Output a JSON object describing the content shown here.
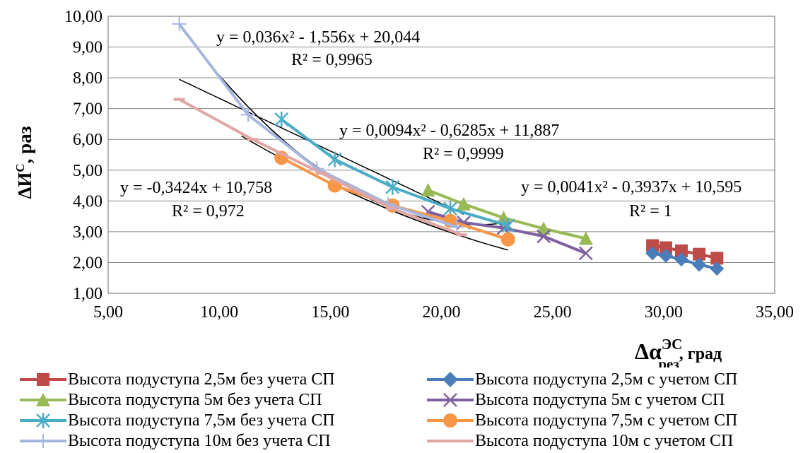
{
  "chart_data": {
    "type": "scatter",
    "ylabel": "ΔИ",
    "ylabel_sup": "С",
    "ylabel_suffix": ", раз",
    "xlabel": "Δα",
    "xlabel_sup": "ЭС",
    "xlabel_sub": "рез",
    "xlabel_suffix": ",  град",
    "xlim": [
      5,
      35
    ],
    "ylim": [
      1,
      10
    ],
    "xticks": [
      5,
      10,
      15,
      20,
      25,
      30,
      35
    ],
    "yticks": [
      1,
      2,
      3,
      4,
      5,
      6,
      7,
      8,
      9,
      10
    ],
    "xtick_labels": [
      "5,00",
      "10,00",
      "15,00",
      "20,00",
      "25,00",
      "30,00",
      "35,00"
    ],
    "ytick_labels": [
      "1,00",
      "2,00",
      "3,00",
      "4,00",
      "5,00",
      "6,00",
      "7,00",
      "8,00",
      "9,00",
      "10,00"
    ],
    "grid": "horizontal",
    "legend_position": "bottom",
    "series": [
      {
        "name": "Высота подуступа 2,5м без учета СП",
        "color": "#be4b48",
        "marker": "square",
        "x": [
          29.5,
          30.1,
          30.8,
          31.6,
          32.4
        ],
        "y": [
          2.55,
          2.48,
          2.38,
          2.27,
          2.14
        ]
      },
      {
        "name": "Высота подуступа 2,5м с учетом СП",
        "color": "#4a7ebb",
        "marker": "diamond",
        "x": [
          29.5,
          30.1,
          30.8,
          31.6,
          32.4
        ],
        "y": [
          2.3,
          2.22,
          2.1,
          1.93,
          1.8
        ]
      },
      {
        "name": "Высота подуступа 5м без учета СП",
        "color": "#98b954",
        "marker": "triangle",
        "x": [
          19.4,
          21.0,
          22.8,
          24.6,
          26.5
        ],
        "y": [
          4.35,
          3.9,
          3.45,
          3.1,
          2.78
        ]
      },
      {
        "name": "Высота подуступа 5м с учетом СП",
        "color": "#7d60a0",
        "marker": "x",
        "x": [
          19.4,
          21.0,
          22.8,
          24.6,
          26.5
        ],
        "y": [
          3.65,
          3.3,
          3.12,
          2.85,
          2.3
        ]
      },
      {
        "name": "Высота подуступа 7,5м без учета СП",
        "color": "#4bacc6",
        "marker": "star",
        "x": [
          12.8,
          15.2,
          17.8,
          20.4,
          23.0
        ],
        "y": [
          6.65,
          5.35,
          4.45,
          3.75,
          3.2
        ]
      },
      {
        "name": "Высота подуступа 7,5м с учетом СП",
        "color": "#f79646",
        "marker": "circle",
        "x": [
          12.8,
          15.2,
          17.8,
          20.4,
          23.0
        ],
        "y": [
          5.4,
          4.5,
          3.85,
          3.35,
          2.75
        ]
      },
      {
        "name": "Высота подуступа 10м без учета СП",
        "color": "#a5b6df",
        "marker": "plus",
        "x": [
          8.2,
          11.3,
          14.4,
          17.6,
          20.7
        ],
        "y": [
          9.75,
          6.8,
          5.05,
          3.9,
          3.15
        ]
      },
      {
        "name": "Высота подуступа 10м с учетом СП",
        "color": "#e0a6a5",
        "marker": "dash",
        "x": [
          8.2,
          11.5,
          14.6,
          17.8,
          20.9
        ],
        "y": [
          7.3,
          6.0,
          4.9,
          3.75,
          2.9
        ]
      }
    ],
    "trendlines": [
      {
        "type": "poly2",
        "a": 0.036,
        "b": -1.556,
        "c": 20.044,
        "x_range": [
          8.2,
          22.5
        ]
      },
      {
        "type": "poly2",
        "a": 0.0094,
        "b": -0.6285,
        "c": 11.887,
        "x_range": [
          12.8,
          23.0
        ]
      },
      {
        "type": "poly2",
        "a": 0.0041,
        "b": -0.3937,
        "c": 10.595,
        "x_range": [
          29.5,
          32.4
        ]
      },
      {
        "type": "linear",
        "a": 0,
        "b": -0.3424,
        "c": 10.758,
        "x_range": [
          8.2,
          21.0
        ]
      },
      {
        "type": "poly2",
        "a": 0.036,
        "b": -1.556,
        "c": 20.044,
        "x_range": [
          8.4,
          20.8
        ]
      },
      {
        "type": "poly2",
        "a": 0.0094,
        "b": -0.6285,
        "c": 11.887,
        "x_range": [
          11.0,
          20.8
        ]
      }
    ],
    "annotations": [
      {
        "eq": "y = 0,036x² - 1,556x + 20,044",
        "r2": "R² = 0,9965"
      },
      {
        "eq": "y = 0,0094x² - 0,6285x + 11,887",
        "r2": "R² = 0,9999"
      },
      {
        "eq": "y = 0,0041x² - 0,3937x + 10,595",
        "r2": "R² = 1"
      },
      {
        "eq": "y = -0,3424x + 10,758",
        "r2": "R² = 0,972"
      }
    ]
  }
}
